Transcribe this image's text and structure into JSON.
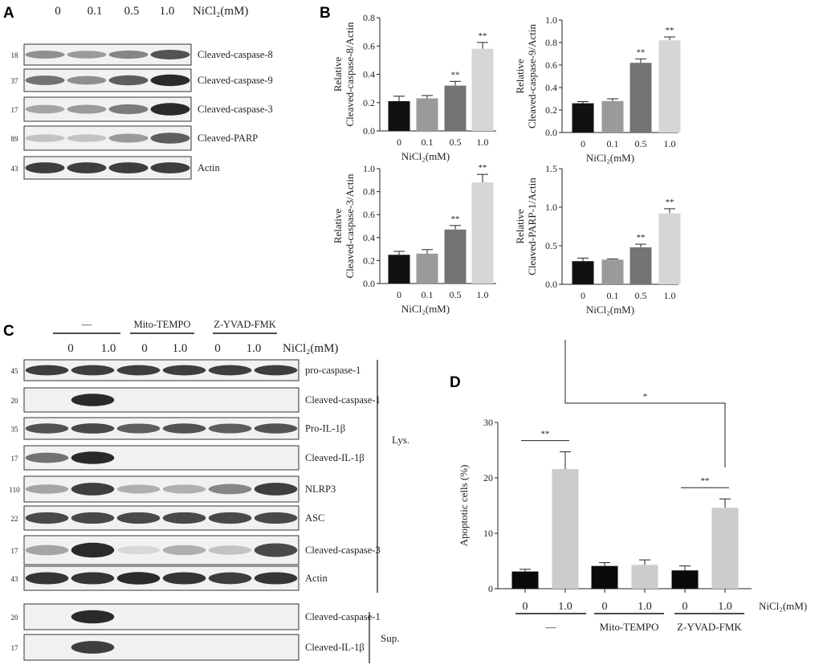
{
  "panel_labels": [
    "A",
    "B",
    "C",
    "D"
  ],
  "panel_a": {
    "lanes": [
      "0",
      "0.1",
      "0.5",
      "1.0"
    ],
    "treatment_label": "NiCl₂(mM)",
    "blots": [
      {
        "mw": "18",
        "label": "Cleaved-caspase-8",
        "intensity": [
          0.45,
          0.4,
          0.5,
          0.75
        ]
      },
      {
        "mw": "37",
        "label": "Cleaved-caspase-9",
        "intensity": [
          0.6,
          0.45,
          0.7,
          0.95
        ]
      },
      {
        "mw": "17",
        "label": "Cleaved-caspase-3",
        "intensity": [
          0.35,
          0.4,
          0.55,
          0.95
        ]
      },
      {
        "mw": "89",
        "label": "Cleaved-PARP",
        "intensity": [
          0.2,
          0.2,
          0.4,
          0.7
        ]
      },
      {
        "mw": "43",
        "label": "Actin",
        "intensity": [
          0.85,
          0.85,
          0.85,
          0.85
        ]
      }
    ]
  },
  "panel_c": {
    "groups": [
      "—",
      "Mito-TEMPO",
      "Z-YVAD-FMK"
    ],
    "lanes": [
      "0",
      "1.0",
      "0",
      "1.0",
      "0",
      "1.0"
    ],
    "treatment_label": "NiCl₂(mM)",
    "lys_label": "Lys.",
    "sup_label": "Sup.",
    "blots": [
      {
        "mw": "45",
        "label": "pro-caspase-1",
        "intensity": [
          0.85,
          0.85,
          0.85,
          0.85,
          0.85,
          0.85
        ]
      },
      {
        "mw": "20",
        "label": "Cleaved-caspase-1",
        "intensity": [
          0,
          0.95,
          0,
          0,
          0,
          0
        ]
      },
      {
        "mw": "35",
        "label": "Pro-IL-1β",
        "intensity": [
          0.75,
          0.8,
          0.7,
          0.75,
          0.7,
          0.75
        ]
      },
      {
        "mw": "17",
        "label": "Cleaved-IL-1β",
        "intensity": [
          0.6,
          0.95,
          0,
          0,
          0,
          0
        ]
      },
      {
        "mw": "110",
        "label": "NLRP3",
        "intensity": [
          0.35,
          0.85,
          0.3,
          0.3,
          0.5,
          0.85
        ]
      },
      {
        "mw": "22",
        "label": "ASC",
        "intensity": [
          0.8,
          0.8,
          0.8,
          0.8,
          0.8,
          0.8
        ]
      },
      {
        "mw": "17",
        "label": "Cleaved-caspase-3",
        "intensity": [
          0.35,
          0.95,
          0.1,
          0.3,
          0.2,
          0.8
        ]
      },
      {
        "mw": "43",
        "label": "Actin",
        "intensity": [
          0.9,
          0.9,
          0.95,
          0.9,
          0.85,
          0.9
        ]
      },
      {
        "mw": "20",
        "label": "Cleaved-caspase-1",
        "intensity": [
          0,
          0.95,
          0,
          0,
          0,
          0
        ]
      },
      {
        "mw": "17",
        "label": "Cleaved-IL-1β",
        "intensity": [
          0,
          0.85,
          0,
          0,
          0,
          0
        ]
      }
    ]
  },
  "chart_data": [
    {
      "type": "bar",
      "panel": "B",
      "ylabel": [
        "Relative",
        "Cleaved-caspase-8/Actin"
      ],
      "xlabel": "NiCl₂(mM)",
      "categories": [
        "0",
        "0.1",
        "0.5",
        "1.0"
      ],
      "values": [
        0.21,
        0.23,
        0.32,
        0.58
      ],
      "errors": [
        0.035,
        0.02,
        0.03,
        0.045
      ],
      "significance": [
        "",
        "",
        "**",
        "**"
      ],
      "ylim": [
        0,
        0.8
      ],
      "yticks": [
        "0.0",
        "0.2",
        "0.4",
        "0.6",
        "0.8"
      ],
      "colors": [
        "#111111",
        "#9a9a9c",
        "#747474",
        "#d6d6d6"
      ]
    },
    {
      "type": "bar",
      "panel": "B",
      "ylabel": [
        "Relative",
        "Cleaved-caspase-9/Actin"
      ],
      "xlabel": "NiCl₂(mM)",
      "categories": [
        "0",
        "0.1",
        "0.5",
        "1.0"
      ],
      "values": [
        0.26,
        0.28,
        0.62,
        0.82
      ],
      "errors": [
        0.015,
        0.02,
        0.035,
        0.03
      ],
      "significance": [
        "",
        "",
        "**",
        "**"
      ],
      "ylim": [
        0,
        1.0
      ],
      "yticks": [
        "0.0",
        "0.2",
        "0.4",
        "0.6",
        "0.8",
        "1.0"
      ],
      "colors": [
        "#111111",
        "#9a9a9c",
        "#747474",
        "#d6d6d6"
      ]
    },
    {
      "type": "bar",
      "panel": "B",
      "ylabel": [
        "Relative",
        "Cleaved-caspase-3/Actin"
      ],
      "xlabel": "NiCl₂(mM)",
      "categories": [
        "0",
        "0.1",
        "0.5",
        "1.0"
      ],
      "values": [
        0.25,
        0.26,
        0.47,
        0.88
      ],
      "errors": [
        0.03,
        0.035,
        0.035,
        0.07
      ],
      "significance": [
        "",
        "",
        "**",
        "**"
      ],
      "ylim": [
        0,
        1.0
      ],
      "yticks": [
        "0.0",
        "0.2",
        "0.4",
        "0.6",
        "0.8",
        "1.0"
      ],
      "colors": [
        "#111111",
        "#9a9a9c",
        "#747474",
        "#d6d6d6"
      ]
    },
    {
      "type": "bar",
      "panel": "B",
      "ylabel": [
        "Relative",
        "Cleaved-PARP-1/Actin"
      ],
      "xlabel": "NiCl₂(mM)",
      "categories": [
        "0",
        "0.1",
        "0.5",
        "1.0"
      ],
      "values": [
        0.3,
        0.32,
        0.48,
        0.92
      ],
      "errors": [
        0.04,
        0.01,
        0.04,
        0.06
      ],
      "significance": [
        "",
        "",
        "**",
        "**"
      ],
      "ylim": [
        0,
        1.5
      ],
      "yticks": [
        "0.0",
        "0.5",
        "1.0",
        "1.5"
      ],
      "colors": [
        "#111111",
        "#9a9a9c",
        "#747474",
        "#d6d6d6"
      ]
    },
    {
      "type": "bar",
      "panel": "D",
      "ylabel": [
        "Apoptotic cells (%)"
      ],
      "xlabel": "NiCl₂(mM)",
      "categories": [
        "0",
        "1.0",
        "0",
        "1.0",
        "0",
        "1.0"
      ],
      "groups": [
        "—",
        "Mito-TEMPO",
        "Z-YVAD-FMK"
      ],
      "values": [
        3.1,
        21.6,
        4.1,
        4.3,
        3.3,
        14.6
      ],
      "errors": [
        0.4,
        3.1,
        0.6,
        0.9,
        0.8,
        1.6
      ],
      "ylim": [
        0,
        30
      ],
      "yticks": [
        "0",
        "10",
        "20",
        "30"
      ],
      "colors": [
        "#0a0a0a",
        "#cccccc",
        "#0a0a0a",
        "#cccccc",
        "#0a0a0a",
        "#cccccc"
      ],
      "comparisons": [
        {
          "from": 0,
          "to": 1,
          "label": "**"
        },
        {
          "from": 4,
          "to": 5,
          "label": "**"
        },
        {
          "from": 1,
          "to": 5,
          "label": "*"
        }
      ]
    }
  ]
}
